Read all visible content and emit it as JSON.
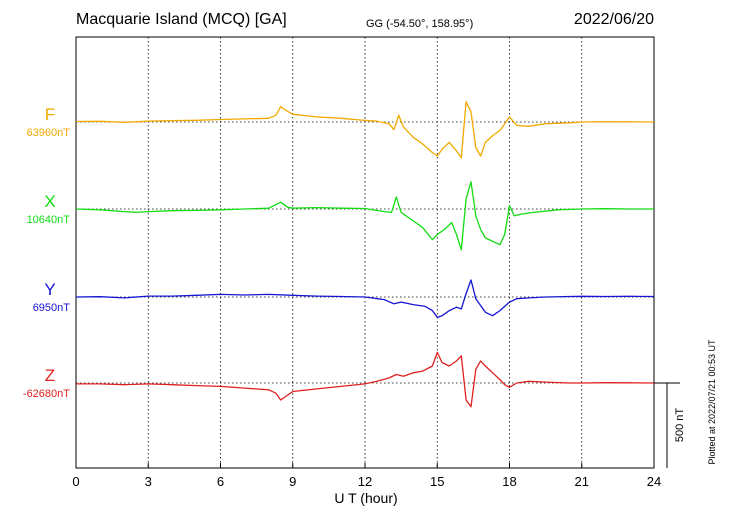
{
  "header": {
    "title": "Macquarie Island (MCQ)  [GA]",
    "coords": "GG (-54.50°, 158.95°)",
    "date": "2022/06/20"
  },
  "footer": {
    "plotted": "Plotted at 2022/07/21 00:53 UT"
  },
  "chart_data": {
    "type": "line",
    "xlabel": "U T (hour)",
    "xlim": [
      0,
      24
    ],
    "xticks": [
      0,
      3,
      6,
      9,
      12,
      15,
      18,
      21,
      24
    ],
    "grid": true,
    "scale_bar": {
      "label": "500 nT",
      "value_nT": 500
    },
    "series": [
      {
        "name": "F",
        "baseline_label": "63960nT",
        "baseline_nT": 63960,
        "color": "#f2a900",
        "points": [
          [
            0,
            3
          ],
          [
            1,
            4
          ],
          [
            2,
            -2
          ],
          [
            3,
            5
          ],
          [
            4,
            8
          ],
          [
            5,
            10
          ],
          [
            6,
            15
          ],
          [
            7,
            18
          ],
          [
            8,
            22
          ],
          [
            8.3,
            40
          ],
          [
            8.5,
            90
          ],
          [
            8.7,
            70
          ],
          [
            9,
            45
          ],
          [
            10,
            30
          ],
          [
            11,
            22
          ],
          [
            11.8,
            12
          ],
          [
            12.5,
            5
          ],
          [
            13,
            -10
          ],
          [
            13.2,
            -45
          ],
          [
            13.4,
            40
          ],
          [
            13.6,
            -30
          ],
          [
            14,
            -90
          ],
          [
            14.4,
            -130
          ],
          [
            14.8,
            -180
          ],
          [
            15,
            -200
          ],
          [
            15.2,
            -160
          ],
          [
            15.5,
            -120
          ],
          [
            15.8,
            -170
          ],
          [
            16,
            -210
          ],
          [
            16.2,
            120
          ],
          [
            16.4,
            60
          ],
          [
            16.6,
            -150
          ],
          [
            16.8,
            -200
          ],
          [
            17,
            -120
          ],
          [
            17.3,
            -80
          ],
          [
            17.6,
            -50
          ],
          [
            17.8,
            -10
          ],
          [
            18,
            30
          ],
          [
            18.3,
            -20
          ],
          [
            18.8,
            -25
          ],
          [
            19.5,
            -10
          ],
          [
            20.5,
            -5
          ],
          [
            21,
            0
          ],
          [
            22,
            2
          ],
          [
            23,
            1
          ],
          [
            24,
            0
          ]
        ]
      },
      {
        "name": "X",
        "baseline_label": "10640nT",
        "baseline_nT": 10640,
        "color": "#11dd11",
        "points": [
          [
            0,
            0
          ],
          [
            1,
            -5
          ],
          [
            2,
            -15
          ],
          [
            2.5,
            -20
          ],
          [
            3,
            -15
          ],
          [
            4,
            -10
          ],
          [
            5,
            -8
          ],
          [
            6,
            -5
          ],
          [
            7,
            0
          ],
          [
            8,
            5
          ],
          [
            8.5,
            40
          ],
          [
            8.8,
            10
          ],
          [
            9,
            5
          ],
          [
            10,
            8
          ],
          [
            11,
            5
          ],
          [
            12,
            3
          ],
          [
            12.8,
            -15
          ],
          [
            13.1,
            -20
          ],
          [
            13.3,
            70
          ],
          [
            13.5,
            -20
          ],
          [
            14,
            -70
          ],
          [
            14.4,
            -110
          ],
          [
            14.8,
            -180
          ],
          [
            15,
            -150
          ],
          [
            15.3,
            -120
          ],
          [
            15.6,
            -80
          ],
          [
            15.8,
            -150
          ],
          [
            16,
            -240
          ],
          [
            16.2,
            60
          ],
          [
            16.4,
            160
          ],
          [
            16.6,
            -40
          ],
          [
            16.8,
            -120
          ],
          [
            17,
            -170
          ],
          [
            17.3,
            -190
          ],
          [
            17.6,
            -210
          ],
          [
            17.8,
            -150
          ],
          [
            18,
            20
          ],
          [
            18.2,
            -40
          ],
          [
            18.5,
            -30
          ],
          [
            19,
            -20
          ],
          [
            20,
            -5
          ],
          [
            21,
            0
          ],
          [
            22,
            2
          ],
          [
            23,
            0
          ],
          [
            24,
            0
          ]
        ]
      },
      {
        "name": "Y",
        "baseline_label": "6950nT",
        "baseline_nT": 6950,
        "color": "#1515d4",
        "points": [
          [
            0,
            0
          ],
          [
            1,
            2
          ],
          [
            2,
            -5
          ],
          [
            3,
            5
          ],
          [
            4,
            5
          ],
          [
            5,
            10
          ],
          [
            6,
            15
          ],
          [
            7,
            12
          ],
          [
            8,
            15
          ],
          [
            9,
            10
          ],
          [
            10,
            5
          ],
          [
            11,
            3
          ],
          [
            12,
            0
          ],
          [
            12.8,
            -15
          ],
          [
            13.2,
            -40
          ],
          [
            13.5,
            -30
          ],
          [
            14,
            -45
          ],
          [
            14.5,
            -55
          ],
          [
            14.8,
            -80
          ],
          [
            15,
            -120
          ],
          [
            15.2,
            -110
          ],
          [
            15.5,
            -80
          ],
          [
            15.8,
            -60
          ],
          [
            16,
            -70
          ],
          [
            16.2,
            20
          ],
          [
            16.4,
            100
          ],
          [
            16.6,
            -10
          ],
          [
            16.8,
            -50
          ],
          [
            17,
            -90
          ],
          [
            17.3,
            -110
          ],
          [
            17.6,
            -80
          ],
          [
            18,
            -30
          ],
          [
            18.3,
            -10
          ],
          [
            18.8,
            -5
          ],
          [
            19.5,
            0
          ],
          [
            20.5,
            3
          ],
          [
            21,
            4
          ],
          [
            22,
            3
          ],
          [
            23,
            4
          ],
          [
            24,
            3
          ]
        ]
      },
      {
        "name": "Z",
        "baseline_label": "-62680nT",
        "baseline_nT": -62680,
        "color": "#e02020",
        "points": [
          [
            0,
            -5
          ],
          [
            1,
            -5
          ],
          [
            2,
            -10
          ],
          [
            3,
            -5
          ],
          [
            4,
            -10
          ],
          [
            5,
            -15
          ],
          [
            6,
            -20
          ],
          [
            7,
            -30
          ],
          [
            8,
            -40
          ],
          [
            8.3,
            -60
          ],
          [
            8.5,
            -100
          ],
          [
            8.7,
            -80
          ],
          [
            9,
            -50
          ],
          [
            10,
            -35
          ],
          [
            11,
            -20
          ],
          [
            12,
            -5
          ],
          [
            12.5,
            10
          ],
          [
            13,
            30
          ],
          [
            13.3,
            50
          ],
          [
            13.6,
            40
          ],
          [
            14,
            60
          ],
          [
            14.4,
            70
          ],
          [
            14.8,
            100
          ],
          [
            15,
            180
          ],
          [
            15.2,
            120
          ],
          [
            15.5,
            100
          ],
          [
            15.8,
            130
          ],
          [
            16,
            160
          ],
          [
            16.2,
            -100
          ],
          [
            16.4,
            -140
          ],
          [
            16.6,
            80
          ],
          [
            16.8,
            130
          ],
          [
            17,
            100
          ],
          [
            17.3,
            60
          ],
          [
            17.6,
            20
          ],
          [
            17.8,
            -10
          ],
          [
            18,
            -25
          ],
          [
            18.3,
            0
          ],
          [
            18.8,
            10
          ],
          [
            19.5,
            5
          ],
          [
            20.5,
            0
          ],
          [
            21,
            0
          ],
          [
            22,
            2
          ],
          [
            23,
            1
          ],
          [
            24,
            0
          ]
        ]
      }
    ]
  }
}
